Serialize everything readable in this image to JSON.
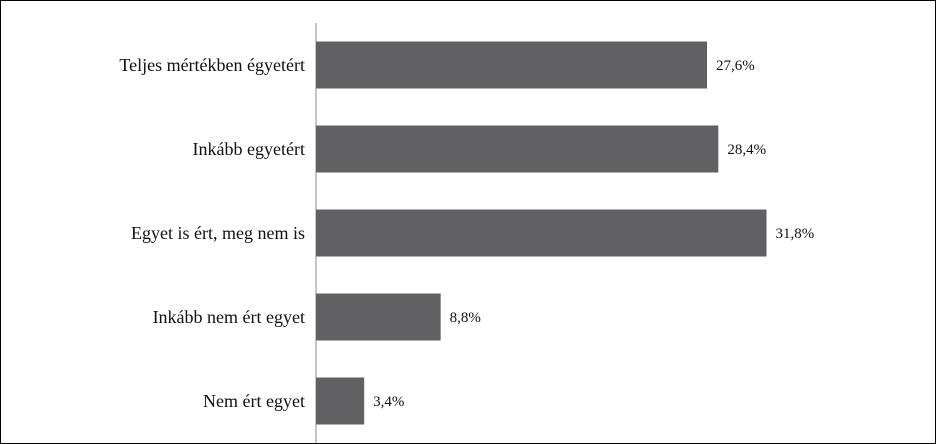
{
  "chart_data": {
    "type": "bar",
    "orientation": "horizontal",
    "categories": [
      "Teljes mértékben égyetért",
      "Inkább egyetért",
      "Egyet is ért, meg nem is",
      "Inkább nem ért egyet",
      "Nem ért egyet"
    ],
    "values": [
      27.6,
      28.4,
      31.8,
      8.8,
      3.4
    ],
    "value_labels": [
      "27,6%",
      "28,4%",
      "31,8%",
      "8,8%",
      "3,4%"
    ],
    "xlim": [
      0,
      36
    ],
    "grid": false,
    "bar_color": "#616163",
    "axis_color": "#888888"
  }
}
